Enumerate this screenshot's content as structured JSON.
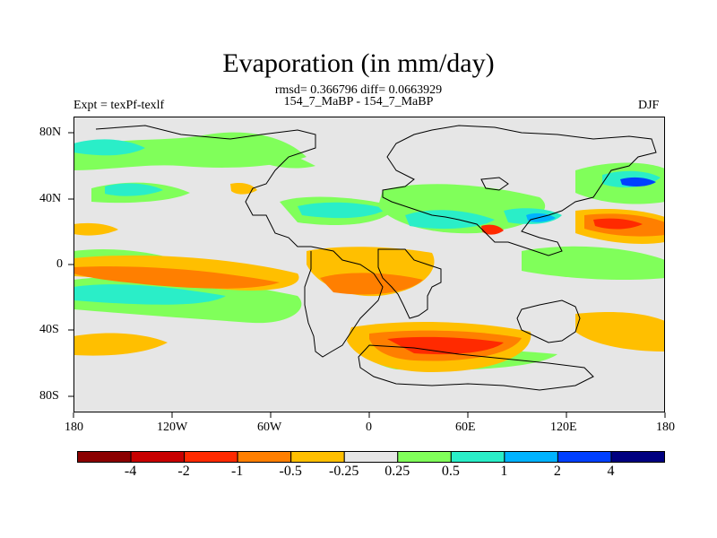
{
  "title": "Evaporation (in mm/day)",
  "stats": "rmsd= 0.366796 diff= 0.0663929",
  "left_label": "Expt = texPf-texlf",
  "center_label": "154_7_MaBP - 154_7_MaBP",
  "right_label": "DJF",
  "chart_data": {
    "type": "heatmap",
    "title": "Evaporation (in mm/day)",
    "projection": "cylindrical equidistant",
    "lon_range": [
      -180,
      180
    ],
    "lat_range": [
      -90,
      90
    ],
    "x_ticks": [
      "180",
      "120W",
      "60W",
      "0",
      "60E",
      "120E",
      "180"
    ],
    "x_tick_values": [
      -180,
      -120,
      -60,
      0,
      60,
      120,
      180
    ],
    "y_ticks": [
      "80N",
      "40N",
      "0",
      "40S",
      "80S"
    ],
    "y_tick_values": [
      80,
      40,
      0,
      -40,
      -80
    ],
    "colorbar": {
      "labels": [
        "-4",
        "-2",
        "-1",
        "-0.5",
        "-0.25",
        "0.25",
        "0.5",
        "1",
        "2",
        "4"
      ],
      "colors": [
        "#8b0000",
        "#c80000",
        "#ff2a00",
        "#ff7f00",
        "#ffbf00",
        "#e6e6e6",
        "#80ff5a",
        "#2aeec8",
        "#00b3ff",
        "#0040ff",
        "#000080"
      ]
    },
    "anomaly_regions": [
      {
        "level": "-0.25",
        "lon": [
          -180,
          -30
        ],
        "lat": [
          -10,
          0
        ]
      },
      {
        "level": "-0.5",
        "lon": [
          -150,
          -70
        ],
        "lat": [
          -10,
          -2
        ]
      },
      {
        "level": "-0.5",
        "lon": [
          -25,
          40
        ],
        "lat": [
          -15,
          -30
        ]
      },
      {
        "level": "-0.5",
        "lon": [
          0,
          85
        ],
        "lat": [
          -40,
          -62
        ]
      },
      {
        "level": "-0.25",
        "lon": [
          -180,
          -150
        ],
        "lat": [
          -50,
          -65
        ]
      },
      {
        "level": "-0.5",
        "lon": [
          125,
          160
        ],
        "lat": [
          15,
          30
        ]
      },
      {
        "level": "0.25",
        "lon": [
          -180,
          -35
        ],
        "lat": [
          -5,
          -30
        ]
      },
      {
        "level": "0.5",
        "lon": [
          -180,
          -130
        ],
        "lat": [
          -10,
          -25
        ]
      },
      {
        "level": "0.25",
        "lon": [
          -180,
          -140
        ],
        "lat": [
          30,
          60
        ]
      },
      {
        "level": "0.5",
        "lon": [
          -30,
          80
        ],
        "lat": [
          20,
          40
        ]
      },
      {
        "level": "1",
        "lon": [
          150,
          175
        ],
        "lat": [
          40,
          50
        ]
      }
    ]
  }
}
